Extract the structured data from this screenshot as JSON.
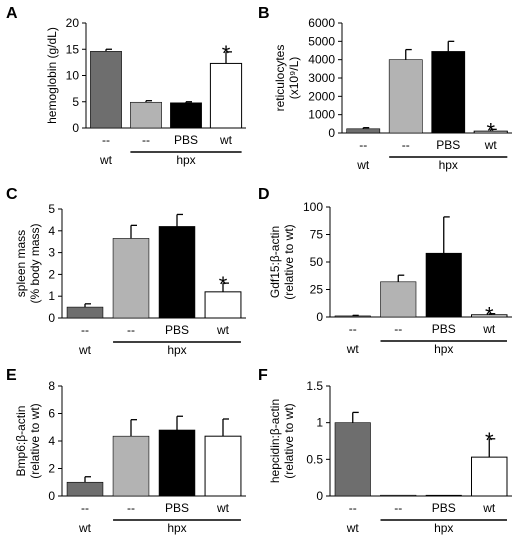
{
  "chart_data": [
    {
      "panel": "A",
      "type": "bar",
      "categories": [
        "--",
        "--",
        "PBS",
        "wt"
      ],
      "groups": [
        "wt",
        "hpx"
      ],
      "values": [
        14.6,
        4.9,
        4.8,
        12.3
      ],
      "errors": [
        0.4,
        0.3,
        0.2,
        2.2
      ],
      "significant": [
        false,
        false,
        false,
        true
      ],
      "colors": [
        "#6e6e6e",
        "#b3b3b3",
        "#000000",
        "#ffffff"
      ],
      "ylabel": "hemoglobin (g/dL)",
      "ylim": [
        0,
        20
      ],
      "yticks": [
        "0",
        "5",
        "10",
        "15",
        "20"
      ]
    },
    {
      "panel": "B",
      "type": "bar",
      "categories": [
        "--",
        "--",
        "PBS",
        "wt"
      ],
      "groups": [
        "wt",
        "hpx"
      ],
      "values": [
        230,
        4000,
        4450,
        100
      ],
      "errors": [
        60,
        550,
        550,
        100
      ],
      "significant": [
        false,
        false,
        false,
        true
      ],
      "colors": [
        "#6e6e6e",
        "#b3b3b3",
        "#000000",
        "#ffffff"
      ],
      "ylabel": "reticulocytes",
      "ylabel2": "(x10⁹/L)",
      "ylim": [
        0,
        6000
      ],
      "yticks": [
        "0",
        "1000",
        "2000",
        "3000",
        "4000",
        "5000",
        "6000"
      ]
    },
    {
      "panel": "C",
      "type": "bar",
      "categories": [
        "--",
        "--",
        "PBS",
        "wt"
      ],
      "groups": [
        "wt",
        "hpx"
      ],
      "values": [
        0.5,
        3.65,
        4.2,
        1.2
      ],
      "errors": [
        0.15,
        0.6,
        0.55,
        0.4
      ],
      "significant": [
        false,
        false,
        false,
        true
      ],
      "colors": [
        "#6e6e6e",
        "#b3b3b3",
        "#000000",
        "#ffffff"
      ],
      "ylabel": "spleen mass",
      "ylabel2": "(% body mass)",
      "ylim": [
        0,
        5
      ],
      "yticks": [
        "0",
        "1",
        "2",
        "3",
        "4",
        "5"
      ]
    },
    {
      "panel": "D",
      "type": "bar",
      "categories": [
        "--",
        "--",
        "PBS",
        "wt"
      ],
      "groups": [
        "wt",
        "hpx"
      ],
      "values": [
        1,
        32,
        58,
        2
      ],
      "errors": [
        0.5,
        6,
        33,
        1
      ],
      "significant": [
        false,
        false,
        false,
        true
      ],
      "colors": [
        "#6e6e6e",
        "#b3b3b3",
        "#000000",
        "#ffffff"
      ],
      "ylabel": "Gdf15:β-actin",
      "ylabel2": "(relative to wt)",
      "ylim": [
        0,
        100
      ],
      "yticks": [
        "0",
        "25",
        "50",
        "75",
        "100"
      ]
    },
    {
      "panel": "E",
      "type": "bar",
      "categories": [
        "--",
        "--",
        "PBS",
        "wt"
      ],
      "groups": [
        "wt",
        "hpx"
      ],
      "values": [
        1,
        4.35,
        4.8,
        4.35
      ],
      "errors": [
        0.4,
        1.2,
        1.0,
        1.25
      ],
      "significant": [
        false,
        false,
        false,
        false
      ],
      "colors": [
        "#6e6e6e",
        "#b3b3b3",
        "#000000",
        "#ffffff"
      ],
      "ylabel": "Bmp6:β-actin",
      "ylabel2": "(relative to wt)",
      "ylim": [
        0,
        8
      ],
      "yticks": [
        "0",
        "2",
        "4",
        "6",
        "8"
      ]
    },
    {
      "panel": "F",
      "type": "bar",
      "categories": [
        "--",
        "--",
        "PBS",
        "wt"
      ],
      "groups": [
        "wt",
        "hpx"
      ],
      "values": [
        1.0,
        0.005,
        0.01,
        0.53
      ],
      "errors": [
        0.14,
        0.0,
        0.0,
        0.25
      ],
      "significant": [
        false,
        false,
        false,
        true
      ],
      "colors": [
        "#6e6e6e",
        "#b3b3b3",
        "#000000",
        "#ffffff"
      ],
      "ylabel": "hepcidin:β-actin",
      "ylabel2": "(relative to wt)",
      "ylim": [
        0,
        1.5
      ],
      "yticks": [
        "0",
        "0.5",
        "1",
        "1.5"
      ]
    }
  ]
}
